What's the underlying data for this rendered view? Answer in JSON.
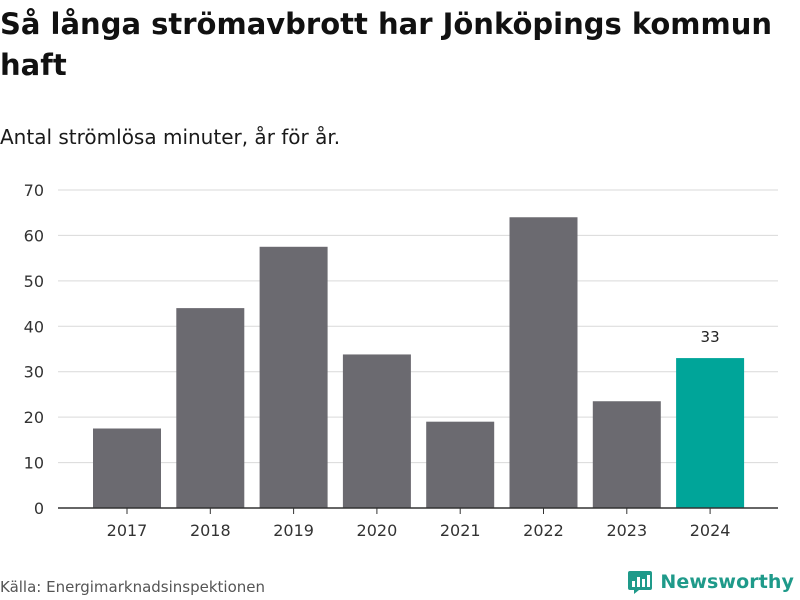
{
  "chart_data": {
    "type": "bar",
    "title": "Så långa strömavbrott har Jönköpings kommun haft",
    "subtitle": "Antal strömlösa minuter, år för år.",
    "categories": [
      "2017",
      "2018",
      "2019",
      "2020",
      "2021",
      "2022",
      "2023",
      "2024"
    ],
    "values": [
      17.5,
      44,
      57.5,
      33.8,
      19,
      64,
      23.5,
      33
    ],
    "data_labels": [
      {
        "index": 7,
        "text": "33"
      }
    ],
    "highlight_index": 7,
    "xlabel": "",
    "ylabel": "",
    "ylim": [
      0,
      70
    ],
    "yticks": [
      0,
      10,
      20,
      30,
      40,
      50,
      60,
      70
    ],
    "grid": true,
    "colors": {
      "bar": "#6b6a70",
      "highlight": "#00a599",
      "grid": "#d9d9d9",
      "axis": "#333333"
    }
  },
  "footer": {
    "source": "Källa: Energimarknadsinspektionen",
    "brand": "Newsworthy",
    "brand_icon": "newsworthy-logo-icon",
    "brand_color": "#1f9a8a"
  }
}
